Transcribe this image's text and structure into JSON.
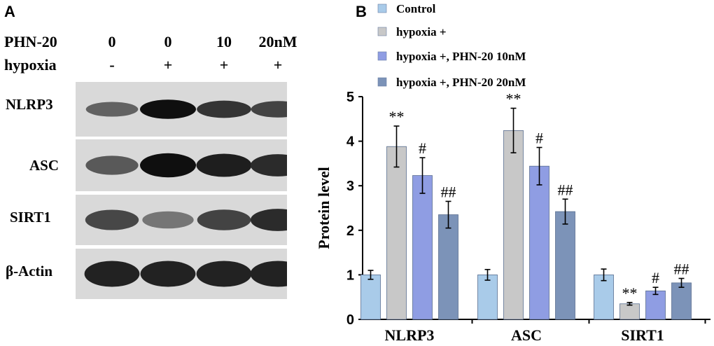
{
  "panel_a": {
    "letter": "A",
    "treatment_rows": [
      {
        "label": "PHN-20",
        "values": [
          "0",
          "0",
          "10",
          "20nM"
        ]
      },
      {
        "label": "hypoxia",
        "values": [
          "-",
          "+",
          "+",
          "+"
        ]
      }
    ],
    "blots": [
      {
        "name": "NLRP3",
        "intensities": [
          0.55,
          1.0,
          0.8,
          0.72
        ]
      },
      {
        "name": "ASC",
        "intensities": [
          0.6,
          1.0,
          0.92,
          0.85
        ]
      },
      {
        "name": "SIRT1",
        "intensities": [
          0.7,
          0.45,
          0.72,
          0.85
        ]
      },
      {
        "name": "β-Actin",
        "intensities": [
          0.9,
          0.9,
          0.9,
          0.9
        ]
      }
    ]
  },
  "panel_b": {
    "letter": "B"
  },
  "chart_data": {
    "type": "bar",
    "title": "",
    "xlabel": "",
    "ylabel": "Protein level",
    "ylim": [
      0,
      5
    ],
    "yticks": [
      "0",
      "1",
      "2",
      "3",
      "4",
      "5"
    ],
    "categories": [
      "NLRP3",
      "ASC",
      "SIRT1"
    ],
    "legend_position": "top",
    "series": [
      {
        "name": "Control",
        "color": "#a9cbe9",
        "values": [
          1.0,
          1.0,
          1.0
        ],
        "errors": [
          0.1,
          0.12,
          0.13
        ],
        "annotations": [
          "",
          "",
          ""
        ]
      },
      {
        "name": "hypoxia +",
        "color": "#c8c8c8",
        "values": [
          3.88,
          4.24,
          0.35
        ],
        "errors": [
          0.46,
          0.5,
          0.03
        ],
        "annotations": [
          "**",
          "**",
          "**"
        ]
      },
      {
        "name": "hypoxia +, PHN-20 10nM",
        "color": "#8f9de3",
        "values": [
          3.23,
          3.44,
          0.64
        ],
        "errors": [
          0.4,
          0.42,
          0.08
        ],
        "annotations": [
          "#",
          "#",
          "#"
        ]
      },
      {
        "name": "hypoxia +, PHN-20 20nM",
        "color": "#7c93b8",
        "values": [
          2.35,
          2.42,
          0.82
        ],
        "errors": [
          0.3,
          0.28,
          0.1
        ],
        "annotations": [
          "##",
          "##",
          "##"
        ]
      }
    ]
  }
}
